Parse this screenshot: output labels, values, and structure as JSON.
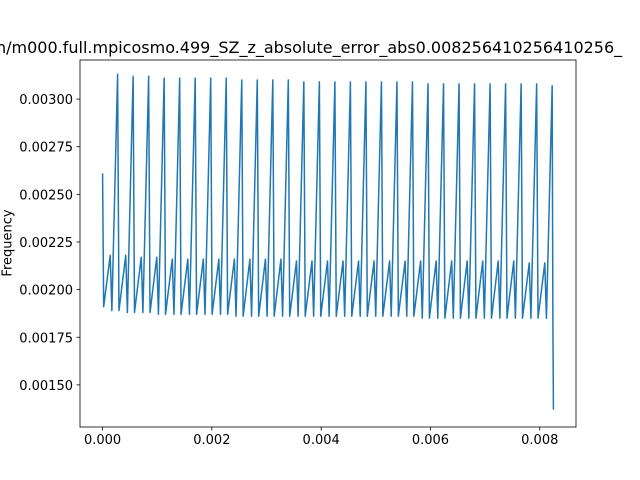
{
  "chart_data": {
    "type": "line",
    "title": "n/m000.full.mpicosmo.499_SZ_z_absolute_error_abs0.008256410256410256_",
    "y_label": "Frequency",
    "color": "#1f77b4",
    "xlim": [
      -0.000413,
      0.008663
    ],
    "ylim": [
      0.001279,
      0.003205
    ],
    "xticks": [
      {
        "value": 0,
        "label": "0.000"
      },
      {
        "value": 0.002,
        "label": "0.002"
      },
      {
        "value": 0.004,
        "label": "0.004"
      },
      {
        "value": 0.006,
        "label": "0.006"
      },
      {
        "value": 0.008,
        "label": "0.008"
      }
    ],
    "yticks": [
      {
        "value": 0.0015,
        "label": "0.00150"
      },
      {
        "value": 0.00175,
        "label": "0.00175"
      },
      {
        "value": 0.002,
        "label": "0.00200"
      },
      {
        "value": 0.00225,
        "label": "0.00225"
      },
      {
        "value": 0.0025,
        "label": "0.00250"
      },
      {
        "value": 0.00275,
        "label": "0.00275"
      },
      {
        "value": 0.003,
        "label": "0.00300"
      }
    ],
    "x": [
      0,
      2e-05,
      0.00014,
      0.00017,
      0.000275,
      0.0003,
      0.000424,
      0.000454,
      0.000559,
      0.000584,
      0.000708,
      0.000738,
      0.000843,
      0.000868,
      0.000992,
      0.001022,
      0.001127,
      0.001152,
      0.001276,
      0.001306,
      0.001411,
      0.001436,
      0.00156,
      0.00159,
      0.001695,
      0.00172,
      0.001844,
      0.001874,
      0.001979,
      0.002004,
      0.002128,
      0.002158,
      0.002263,
      0.002288,
      0.002412,
      0.002442,
      0.002547,
      0.002572,
      0.002696,
      0.002726,
      0.002831,
      0.002856,
      0.00298,
      0.00301,
      0.003115,
      0.00314,
      0.003264,
      0.003294,
      0.003399,
      0.003424,
      0.003548,
      0.003578,
      0.003683,
      0.003708,
      0.003832,
      0.003862,
      0.003967,
      0.003992,
      0.004116,
      0.004146,
      0.004251,
      0.004276,
      0.0044,
      0.00443,
      0.004535,
      0.00456,
      0.004684,
      0.004714,
      0.004819,
      0.004844,
      0.004968,
      0.004998,
      0.005103,
      0.005128,
      0.005252,
      0.005282,
      0.005387,
      0.005412,
      0.005536,
      0.005566,
      0.005671,
      0.005696,
      0.00582,
      0.00585,
      0.005955,
      0.00598,
      0.006104,
      0.006134,
      0.006239,
      0.006264,
      0.006388,
      0.006418,
      0.006523,
      0.006548,
      0.006672,
      0.006702,
      0.006807,
      0.006832,
      0.006956,
      0.006986,
      0.007091,
      0.007116,
      0.00724,
      0.00727,
      0.007375,
      0.0074,
      0.007524,
      0.007554,
      0.007659,
      0.007684,
      0.007808,
      0.007838,
      0.007943,
      0.007968,
      0.008092,
      0.008122,
      0.008227,
      0.00824,
      0.00825
    ],
    "values": [
      0.00261,
      0.00191,
      0.00218,
      0.00189,
      0.00313,
      0.00189,
      0.00218,
      0.00188,
      0.00312,
      0.00188,
      0.00217,
      0.00188,
      0.00312,
      0.00188,
      0.00217,
      0.00187,
      0.00311,
      0.00187,
      0.00216,
      0.00187,
      0.00311,
      0.00187,
      0.00216,
      0.00187,
      0.00311,
      0.00187,
      0.00216,
      0.00187,
      0.00311,
      0.00187,
      0.00216,
      0.00187,
      0.00311,
      0.00187,
      0.00216,
      0.00186,
      0.0031,
      0.00186,
      0.00216,
      0.00186,
      0.0031,
      0.00186,
      0.00216,
      0.00186,
      0.0031,
      0.00186,
      0.00216,
      0.00186,
      0.0031,
      0.00186,
      0.00215,
      0.00186,
      0.00309,
      0.00186,
      0.00215,
      0.00186,
      0.00309,
      0.00186,
      0.00215,
      0.00186,
      0.00309,
      0.00186,
      0.00215,
      0.00186,
      0.00309,
      0.00186,
      0.00215,
      0.00186,
      0.00309,
      0.00186,
      0.00215,
      0.00186,
      0.00309,
      0.00186,
      0.00215,
      0.00186,
      0.00309,
      0.00186,
      0.00215,
      0.00186,
      0.00309,
      0.00186,
      0.00215,
      0.00185,
      0.00308,
      0.00185,
      0.00215,
      0.00185,
      0.00308,
      0.00185,
      0.00215,
      0.00185,
      0.00308,
      0.00185,
      0.00215,
      0.00185,
      0.00308,
      0.00185,
      0.00215,
      0.00185,
      0.00308,
      0.00185,
      0.00215,
      0.00185,
      0.00308,
      0.00185,
      0.00215,
      0.00185,
      0.00308,
      0.00185,
      0.00214,
      0.00185,
      0.00308,
      0.00185,
      0.00214,
      0.00185,
      0.00307,
      0.00184,
      0.00137
    ]
  }
}
